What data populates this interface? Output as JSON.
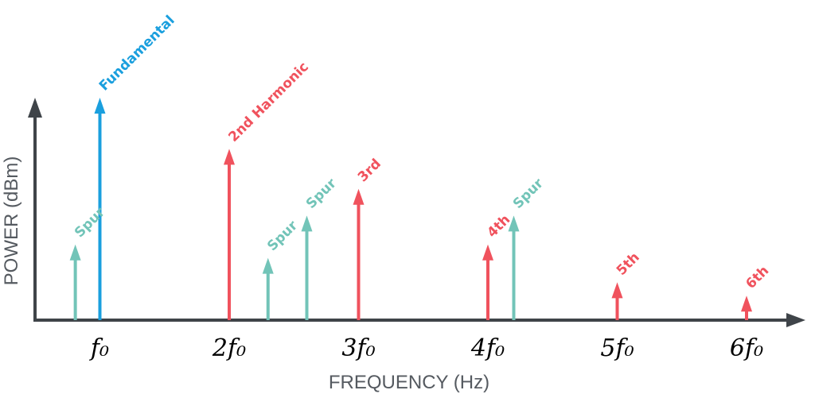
{
  "chart_data": {
    "type": "bar",
    "xlabel": "FREQUENCY (Hz)",
    "ylabel": "POWER (dBm)",
    "x_ticks": [
      "f₀",
      "2f₀",
      "3f₀",
      "4f₀",
      "5f₀",
      "6f₀"
    ],
    "y_units": "relative",
    "series": [
      {
        "name": "Fundamental",
        "color": "#1a9fde",
        "points": [
          {
            "x": 1.0,
            "y": 100,
            "label": "Fundamental"
          }
        ]
      },
      {
        "name": "Harmonics",
        "color": "#f0525d",
        "points": [
          {
            "x": 2.0,
            "y": 77,
            "label": "2nd Harmonic"
          },
          {
            "x": 3.0,
            "y": 59,
            "label": "3rd"
          },
          {
            "x": 4.0,
            "y": 34,
            "label": "4th"
          },
          {
            "x": 5.0,
            "y": 17,
            "label": "5th"
          },
          {
            "x": 6.0,
            "y": 11,
            "label": "6th"
          }
        ]
      },
      {
        "name": "Spurs",
        "color": "#72c4b8",
        "points": [
          {
            "x": 0.81,
            "y": 34,
            "label": "Spur"
          },
          {
            "x": 2.3,
            "y": 28,
            "label": "Spur"
          },
          {
            "x": 2.6,
            "y": 47,
            "label": "Spur"
          },
          {
            "x": 4.2,
            "y": 47,
            "label": "Spur"
          }
        ]
      }
    ],
    "axis_color": "#3f4449"
  }
}
